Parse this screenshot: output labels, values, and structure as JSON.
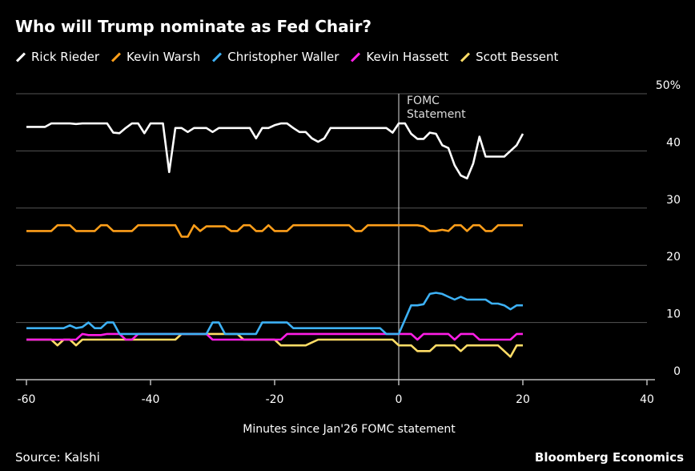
{
  "title": "Who will Trump nominate as Fed Chair?",
  "source": "Source: Kalshi",
  "brand": "Bloomberg Economics",
  "chart_data": {
    "type": "line",
    "title": "Who will Trump nominate as Fed Chair?",
    "xlabel": "Minutes since Jan'26 FOMC statement",
    "ylabel": "",
    "xlim": [
      -60,
      40
    ],
    "ylim": [
      0,
      50
    ],
    "x_ticks": [
      -60,
      -40,
      -20,
      0,
      20,
      40
    ],
    "y_ticks": [
      0,
      10,
      20,
      30,
      40,
      50
    ],
    "y_tick_labels": [
      "0",
      "10",
      "20",
      "30",
      "40",
      "50%"
    ],
    "y_axis_side": "right",
    "grid": "horizontal",
    "legend": "top",
    "annotation": {
      "x": 0,
      "text_lines": [
        "FOMC",
        "Statement"
      ]
    },
    "x_start": -60,
    "x_step": 1,
    "series": [
      {
        "name": "Rick Rieder",
        "color": "#ffffff",
        "values": [
          44.2,
          44.2,
          44.2,
          44.2,
          44.8,
          44.8,
          44.8,
          44.8,
          44.7,
          44.8,
          44.8,
          44.8,
          44.8,
          44.8,
          43.2,
          43.1,
          44,
          44.8,
          44.8,
          43.1,
          44.8,
          44.8,
          44.8,
          36.3,
          44,
          44,
          43.3,
          44,
          44,
          44,
          43.3,
          44,
          44,
          44,
          44,
          44,
          44,
          42.2,
          44,
          44,
          44.5,
          44.8,
          44.8,
          44,
          43.3,
          43.3,
          42.2,
          41.6,
          42.2,
          44,
          44,
          44,
          44,
          44,
          44,
          44,
          44,
          44,
          44,
          43.2,
          44.8,
          44.8,
          43,
          42.1,
          42.1,
          43.2,
          43,
          41,
          40.5,
          37.5,
          35.7,
          35.2,
          37.8,
          42.5,
          39,
          39,
          39,
          39,
          40,
          41,
          43
        ]
      },
      {
        "name": "Kevin Warsh",
        "color": "#ff9f1a",
        "values": [
          26,
          26,
          26,
          26,
          26,
          27,
          27,
          27,
          26,
          26,
          26,
          26,
          27,
          27,
          26,
          26,
          26,
          26,
          27,
          27,
          27,
          27,
          27,
          27,
          27,
          25,
          25,
          27,
          26,
          26.8,
          26.8,
          26.8,
          26.8,
          26,
          26,
          27,
          27,
          26,
          26,
          27,
          26,
          26,
          26,
          27,
          27,
          27,
          27,
          27,
          27,
          27,
          27,
          27,
          27,
          26,
          26,
          27,
          27,
          27,
          27,
          27,
          27,
          27,
          27,
          27,
          26.8,
          26,
          26,
          26.2,
          26,
          27,
          27,
          26,
          27,
          27,
          26,
          26,
          27,
          27,
          27,
          27,
          27
        ]
      },
      {
        "name": "Christopher Waller",
        "color": "#3db1f5",
        "values": [
          9,
          9,
          9,
          9,
          9,
          9,
          9,
          9.5,
          9,
          9.2,
          10,
          9,
          9,
          10,
          10,
          8,
          8,
          8,
          8,
          8,
          8,
          8,
          8,
          8,
          8,
          8,
          8,
          8,
          8,
          8,
          10,
          10,
          8,
          8,
          8,
          8,
          8,
          8,
          10,
          10,
          10,
          10,
          10,
          9,
          9,
          9,
          9,
          9,
          9,
          9,
          9,
          9,
          9,
          9,
          9,
          9,
          9,
          9,
          8,
          8,
          8,
          10.5,
          13,
          13,
          13.2,
          15,
          15.2,
          15,
          14.5,
          14,
          14.5,
          14,
          14,
          14,
          14,
          13.3,
          13.3,
          13,
          12.3,
          13,
          13
        ]
      },
      {
        "name": "Kevin Hassett",
        "color": "#ff1ee6",
        "values": [
          7,
          7,
          7,
          7,
          7,
          7,
          7,
          7,
          7,
          8,
          7.8,
          7.8,
          7.8,
          8,
          8,
          8,
          7,
          7,
          8,
          8,
          8,
          8,
          8,
          8,
          8,
          8,
          8,
          8,
          8,
          8,
          7,
          7,
          7,
          7,
          7,
          7,
          7,
          7,
          7,
          7,
          7,
          7,
          8,
          8,
          8,
          8,
          8,
          8,
          8,
          8,
          8,
          8,
          8,
          8,
          8,
          8,
          8,
          8,
          8,
          8,
          8,
          8,
          8,
          7,
          8,
          8,
          8,
          8,
          8,
          7,
          8,
          8,
          8,
          7,
          7,
          7,
          7,
          7,
          7,
          8,
          8
        ]
      },
      {
        "name": "Scott Bessent",
        "color": "#ffdd66",
        "values": [
          7,
          7,
          7,
          7,
          7,
          6,
          7,
          7,
          6,
          7,
          7,
          7,
          7,
          7,
          7,
          7,
          7,
          7,
          7,
          7,
          7,
          7,
          7,
          7,
          7,
          8,
          8,
          8,
          8,
          8,
          8,
          8,
          8,
          8,
          8,
          7,
          7,
          7,
          7,
          7,
          7,
          6,
          6,
          6,
          6,
          6,
          6.5,
          7,
          7,
          7,
          7,
          7,
          7,
          7,
          7,
          7,
          7,
          7,
          7,
          7,
          6,
          6,
          6,
          5,
          5,
          5,
          6,
          6,
          6,
          6,
          5,
          6,
          6,
          6,
          6,
          6,
          6,
          5,
          4,
          6,
          6
        ]
      }
    ]
  }
}
